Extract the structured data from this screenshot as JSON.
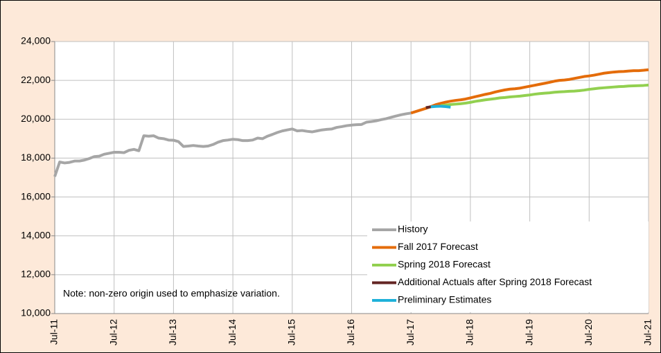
{
  "chart_data": {
    "type": "line",
    "note": "Note: non-zero origin used to emphasize variation.",
    "categories": [
      "Jul-11",
      null,
      null,
      null,
      null,
      null,
      null,
      null,
      null,
      null,
      null,
      null,
      "Jul-12",
      null,
      null,
      null,
      null,
      null,
      null,
      null,
      null,
      null,
      null,
      null,
      "Jul-13",
      null,
      null,
      null,
      null,
      null,
      null,
      null,
      null,
      null,
      null,
      null,
      "Jul-14",
      null,
      null,
      null,
      null,
      null,
      null,
      null,
      null,
      null,
      null,
      null,
      "Jul-15",
      null,
      null,
      null,
      null,
      null,
      null,
      null,
      null,
      null,
      null,
      null,
      "Jul-16",
      null,
      null,
      null,
      null,
      null,
      null,
      null,
      null,
      null,
      null,
      null,
      "Jul-17",
      null,
      null,
      null,
      null,
      null,
      null,
      null,
      null,
      null,
      null,
      null,
      "Jul-18",
      null,
      null,
      null,
      null,
      null,
      null,
      null,
      null,
      null,
      null,
      null,
      "Jul-19",
      null,
      null,
      null,
      null,
      null,
      null,
      null,
      null,
      null,
      null,
      null,
      "Jul-20",
      null,
      null,
      null,
      null,
      null,
      null,
      null,
      null,
      null,
      null,
      null,
      "Jul-21"
    ],
    "series": [
      {
        "name": "History",
        "color": "#a6a6a6",
        "values": [
          17050,
          17800,
          17750,
          17780,
          17850,
          17850,
          17900,
          17980,
          18080,
          18100,
          18200,
          18250,
          18300,
          18300,
          18280,
          18400,
          18450,
          18380,
          19150,
          19130,
          19150,
          19030,
          19000,
          18930,
          18920,
          18850,
          18600,
          18620,
          18650,
          18620,
          18600,
          18620,
          18700,
          18820,
          18900,
          18930,
          18970,
          18950,
          18900,
          18900,
          18930,
          19030,
          19000,
          19130,
          19220,
          19320,
          19400,
          19450,
          19500,
          19400,
          19420,
          19380,
          19350,
          19400,
          19450,
          19480,
          19500,
          19580,
          19620,
          19670,
          19700,
          19720,
          19730,
          19850,
          19880,
          19920,
          19980,
          20030,
          20100,
          20170,
          20230,
          20280,
          20320,
          null,
          null,
          null,
          null,
          null,
          null,
          null,
          null,
          null,
          null,
          null,
          null,
          null,
          null,
          null,
          null,
          null,
          null,
          null,
          null,
          null,
          null,
          null,
          null,
          null,
          null,
          null,
          null,
          null,
          null,
          null,
          null,
          null,
          null,
          null,
          null,
          null,
          null,
          null,
          null,
          null,
          null,
          null,
          null,
          null,
          null,
          null,
          null
        ]
      },
      {
        "name": "Fall 2017 Forecast",
        "color": "#e46c0a",
        "values": [
          null,
          null,
          null,
          null,
          null,
          null,
          null,
          null,
          null,
          null,
          null,
          null,
          null,
          null,
          null,
          null,
          null,
          null,
          null,
          null,
          null,
          null,
          null,
          null,
          null,
          null,
          null,
          null,
          null,
          null,
          null,
          null,
          null,
          null,
          null,
          null,
          null,
          null,
          null,
          null,
          null,
          null,
          null,
          null,
          null,
          null,
          null,
          null,
          null,
          null,
          null,
          null,
          null,
          null,
          null,
          null,
          null,
          null,
          null,
          null,
          null,
          null,
          null,
          null,
          null,
          null,
          null,
          null,
          null,
          null,
          null,
          null,
          20320,
          20400,
          20480,
          20560,
          20650,
          20750,
          20820,
          20880,
          20930,
          20970,
          21000,
          21040,
          21100,
          21160,
          21220,
          21280,
          21330,
          21400,
          21460,
          21510,
          21550,
          21570,
          21600,
          21650,
          21700,
          21750,
          21800,
          21850,
          21900,
          21960,
          22000,
          22020,
          22050,
          22100,
          22150,
          22200,
          22230,
          22270,
          22320,
          22370,
          22400,
          22430,
          22450,
          22460,
          22480,
          22500,
          22500,
          22520,
          22550
        ]
      },
      {
        "name": "Spring 2018 Forecast",
        "color": "#92d050",
        "values": [
          null,
          null,
          null,
          null,
          null,
          null,
          null,
          null,
          null,
          null,
          null,
          null,
          null,
          null,
          null,
          null,
          null,
          null,
          null,
          null,
          null,
          null,
          null,
          null,
          null,
          null,
          null,
          null,
          null,
          null,
          null,
          null,
          null,
          null,
          null,
          null,
          null,
          null,
          null,
          null,
          null,
          null,
          null,
          null,
          null,
          null,
          null,
          null,
          null,
          null,
          null,
          null,
          null,
          null,
          null,
          null,
          null,
          null,
          null,
          null,
          null,
          null,
          null,
          null,
          null,
          null,
          null,
          null,
          null,
          null,
          null,
          null,
          null,
          null,
          null,
          null,
          null,
          null,
          20700,
          20730,
          20760,
          20780,
          20800,
          20830,
          20870,
          20920,
          20960,
          21000,
          21030,
          21060,
          21100,
          21120,
          21150,
          21170,
          21190,
          21220,
          21250,
          21290,
          21320,
          21340,
          21360,
          21390,
          21410,
          21420,
          21440,
          21450,
          21470,
          21500,
          21540,
          21570,
          21600,
          21620,
          21640,
          21660,
          21680,
          21690,
          21710,
          21720,
          21730,
          21740,
          21760
        ]
      },
      {
        "name": "Additional Actuals after Spring 2018 Forecast",
        "color": "#632523",
        "values": [
          null,
          null,
          null,
          null,
          null,
          null,
          null,
          null,
          null,
          null,
          null,
          null,
          null,
          null,
          null,
          null,
          null,
          null,
          null,
          null,
          null,
          null,
          null,
          null,
          null,
          null,
          null,
          null,
          null,
          null,
          null,
          null,
          null,
          null,
          null,
          null,
          null,
          null,
          null,
          null,
          null,
          null,
          null,
          null,
          null,
          null,
          null,
          null,
          null,
          null,
          null,
          null,
          null,
          null,
          null,
          null,
          null,
          null,
          null,
          null,
          null,
          null,
          null,
          null,
          null,
          null,
          null,
          null,
          null,
          null,
          null,
          null,
          null,
          null,
          null,
          20600,
          20640,
          null,
          null,
          null,
          null,
          null,
          null,
          null,
          null,
          null,
          null,
          null,
          null,
          null,
          null,
          null,
          null,
          null,
          null,
          null,
          null,
          null,
          null,
          null,
          null,
          null,
          null,
          null,
          null,
          null,
          null,
          null,
          null,
          null,
          null,
          null,
          null,
          null,
          null,
          null,
          null,
          null,
          null,
          null,
          null
        ]
      },
      {
        "name": "Preliminary Estimates",
        "color": "#1fb1d9",
        "values": [
          null,
          null,
          null,
          null,
          null,
          null,
          null,
          null,
          null,
          null,
          null,
          null,
          null,
          null,
          null,
          null,
          null,
          null,
          null,
          null,
          null,
          null,
          null,
          null,
          null,
          null,
          null,
          null,
          null,
          null,
          null,
          null,
          null,
          null,
          null,
          null,
          null,
          null,
          null,
          null,
          null,
          null,
          null,
          null,
          null,
          null,
          null,
          null,
          null,
          null,
          null,
          null,
          null,
          null,
          null,
          null,
          null,
          null,
          null,
          null,
          null,
          null,
          null,
          null,
          null,
          null,
          null,
          null,
          null,
          null,
          null,
          null,
          null,
          null,
          null,
          null,
          20640,
          20660,
          20670,
          20650,
          20620,
          null,
          null,
          null,
          null,
          null,
          null,
          null,
          null,
          null,
          null,
          null,
          null,
          null,
          null,
          null,
          null,
          null,
          null,
          null,
          null,
          null,
          null,
          null,
          null,
          null,
          null,
          null,
          null,
          null,
          null,
          null,
          null,
          null,
          null,
          null,
          null,
          null,
          null,
          null,
          null
        ]
      }
    ],
    "ylim": [
      10000,
      24000
    ],
    "yticks": [
      {
        "value": 10000,
        "label": "10,000"
      },
      {
        "value": 12000,
        "label": "12,000"
      },
      {
        "value": 14000,
        "label": "14,000"
      },
      {
        "value": 16000,
        "label": "16,000"
      },
      {
        "value": 18000,
        "label": "18,000"
      },
      {
        "value": 20000,
        "label": "20,000"
      },
      {
        "value": 22000,
        "label": "22,000"
      },
      {
        "value": 24000,
        "label": "24,000"
      }
    ],
    "grid": true,
    "legend": "lower right"
  }
}
